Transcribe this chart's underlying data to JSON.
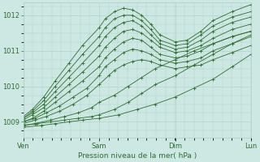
{
  "bg_color": "#cde8e3",
  "grid_color": "#b0cccc",
  "line_color": "#2d6e2d",
  "xlabel": "Pression niveau de la mer( hPa )",
  "xtick_labels": [
    "Ven",
    "Sam",
    "Dim",
    "Lun"
  ],
  "xtick_positions": [
    0.0,
    0.333,
    0.667,
    1.0
  ],
  "ylim": [
    1008.55,
    1012.35
  ],
  "yticks": [
    1009,
    1010,
    1011,
    1012
  ],
  "series": [
    {
      "pts": [
        [
          0.0,
          1008.85
        ],
        [
          0.08,
          1008.9
        ],
        [
          0.14,
          1008.95
        ],
        [
          0.2,
          1009.0
        ],
        [
          0.26,
          1009.05
        ],
        [
          0.333,
          1009.1
        ],
        [
          0.42,
          1009.2
        ],
        [
          0.5,
          1009.35
        ],
        [
          0.58,
          1009.5
        ],
        [
          0.667,
          1009.7
        ],
        [
          0.75,
          1009.95
        ],
        [
          0.833,
          1010.2
        ],
        [
          0.917,
          1010.55
        ],
        [
          1.0,
          1010.9
        ]
      ]
    },
    {
      "pts": [
        [
          0.0,
          1008.9
        ],
        [
          0.06,
          1008.95
        ],
        [
          0.12,
          1009.0
        ],
        [
          0.18,
          1009.05
        ],
        [
          0.24,
          1009.1
        ],
        [
          0.3,
          1009.15
        ],
        [
          0.333,
          1009.2
        ],
        [
          0.4,
          1009.35
        ],
        [
          0.46,
          1009.55
        ],
        [
          0.52,
          1009.8
        ],
        [
          0.58,
          1010.05
        ],
        [
          0.667,
          1010.3
        ],
        [
          0.75,
          1010.6
        ],
        [
          0.833,
          1010.9
        ],
        [
          0.917,
          1011.2
        ],
        [
          1.0,
          1011.45
        ]
      ]
    },
    {
      "pts": [
        [
          0.0,
          1008.9
        ],
        [
          0.05,
          1008.95
        ],
        [
          0.12,
          1009.05
        ],
        [
          0.18,
          1009.15
        ],
        [
          0.24,
          1009.25
        ],
        [
          0.3,
          1009.4
        ],
        [
          0.333,
          1009.55
        ],
        [
          0.4,
          1009.75
        ],
        [
          0.46,
          1010.0
        ],
        [
          0.52,
          1010.25
        ],
        [
          0.58,
          1010.5
        ],
        [
          0.667,
          1010.75
        ],
        [
          0.75,
          1011.0
        ],
        [
          0.833,
          1011.2
        ],
        [
          0.917,
          1011.4
        ],
        [
          1.0,
          1011.55
        ]
      ]
    },
    {
      "pts": [
        [
          0.0,
          1008.95
        ],
        [
          0.05,
          1009.05
        ],
        [
          0.1,
          1009.15
        ],
        [
          0.16,
          1009.3
        ],
        [
          0.22,
          1009.5
        ],
        [
          0.28,
          1009.75
        ],
        [
          0.333,
          1010.05
        ],
        [
          0.375,
          1010.3
        ],
        [
          0.4,
          1010.45
        ],
        [
          0.44,
          1010.6
        ],
        [
          0.48,
          1010.7
        ],
        [
          0.52,
          1010.75
        ],
        [
          0.56,
          1010.7
        ],
        [
          0.6,
          1010.6
        ],
        [
          0.667,
          1010.5
        ],
        [
          0.72,
          1010.55
        ],
        [
          0.78,
          1010.6
        ],
        [
          0.833,
          1010.75
        ],
        [
          0.917,
          1010.95
        ],
        [
          1.0,
          1011.15
        ]
      ]
    },
    {
      "pts": [
        [
          0.0,
          1009.0
        ],
        [
          0.05,
          1009.1
        ],
        [
          0.1,
          1009.25
        ],
        [
          0.16,
          1009.45
        ],
        [
          0.22,
          1009.7
        ],
        [
          0.28,
          1009.95
        ],
        [
          0.333,
          1010.3
        ],
        [
          0.36,
          1010.55
        ],
        [
          0.4,
          1010.75
        ],
        [
          0.44,
          1010.95
        ],
        [
          0.48,
          1011.05
        ],
        [
          0.52,
          1011.0
        ],
        [
          0.56,
          1010.9
        ],
        [
          0.6,
          1010.75
        ],
        [
          0.667,
          1010.65
        ],
        [
          0.72,
          1010.7
        ],
        [
          0.78,
          1010.8
        ],
        [
          0.833,
          1011.0
        ],
        [
          0.917,
          1011.2
        ],
        [
          1.0,
          1011.4
        ]
      ]
    },
    {
      "pts": [
        [
          0.0,
          1009.0
        ],
        [
          0.04,
          1009.1
        ],
        [
          0.09,
          1009.3
        ],
        [
          0.14,
          1009.55
        ],
        [
          0.2,
          1009.85
        ],
        [
          0.26,
          1010.15
        ],
        [
          0.333,
          1010.55
        ],
        [
          0.36,
          1010.8
        ],
        [
          0.4,
          1011.05
        ],
        [
          0.44,
          1011.25
        ],
        [
          0.48,
          1011.35
        ],
        [
          0.52,
          1011.3
        ],
        [
          0.56,
          1011.1
        ],
        [
          0.6,
          1010.9
        ],
        [
          0.667,
          1010.8
        ],
        [
          0.72,
          1010.85
        ],
        [
          0.78,
          1011.0
        ],
        [
          0.833,
          1011.2
        ],
        [
          0.917,
          1011.4
        ],
        [
          1.0,
          1011.55
        ]
      ]
    },
    {
      "pts": [
        [
          0.0,
          1009.05
        ],
        [
          0.04,
          1009.2
        ],
        [
          0.09,
          1009.4
        ],
        [
          0.14,
          1009.7
        ],
        [
          0.2,
          1010.05
        ],
        [
          0.26,
          1010.4
        ],
        [
          0.333,
          1010.85
        ],
        [
          0.36,
          1011.1
        ],
        [
          0.4,
          1011.35
        ],
        [
          0.44,
          1011.55
        ],
        [
          0.48,
          1011.6
        ],
        [
          0.52,
          1011.5
        ],
        [
          0.56,
          1011.3
        ],
        [
          0.6,
          1011.1
        ],
        [
          0.667,
          1010.95
        ],
        [
          0.72,
          1011.0
        ],
        [
          0.78,
          1011.15
        ],
        [
          0.833,
          1011.35
        ],
        [
          0.917,
          1011.6
        ],
        [
          1.0,
          1011.75
        ]
      ]
    },
    {
      "pts": [
        [
          0.0,
          1009.1
        ],
        [
          0.04,
          1009.25
        ],
        [
          0.09,
          1009.5
        ],
        [
          0.14,
          1009.85
        ],
        [
          0.2,
          1010.25
        ],
        [
          0.26,
          1010.65
        ],
        [
          0.333,
          1011.15
        ],
        [
          0.36,
          1011.4
        ],
        [
          0.4,
          1011.65
        ],
        [
          0.44,
          1011.8
        ],
        [
          0.48,
          1011.85
        ],
        [
          0.52,
          1011.7
        ],
        [
          0.56,
          1011.45
        ],
        [
          0.6,
          1011.2
        ],
        [
          0.667,
          1011.05
        ],
        [
          0.72,
          1011.1
        ],
        [
          0.78,
          1011.3
        ],
        [
          0.833,
          1011.55
        ],
        [
          0.917,
          1011.8
        ],
        [
          1.0,
          1011.95
        ]
      ]
    },
    {
      "pts": [
        [
          0.0,
          1009.1
        ],
        [
          0.04,
          1009.3
        ],
        [
          0.09,
          1009.6
        ],
        [
          0.14,
          1010.0
        ],
        [
          0.2,
          1010.45
        ],
        [
          0.26,
          1010.9
        ],
        [
          0.333,
          1011.4
        ],
        [
          0.36,
          1011.65
        ],
        [
          0.4,
          1011.9
        ],
        [
          0.44,
          1012.0
        ],
        [
          0.48,
          1012.0
        ],
        [
          0.52,
          1011.85
        ],
        [
          0.56,
          1011.6
        ],
        [
          0.6,
          1011.3
        ],
        [
          0.667,
          1011.15
        ],
        [
          0.72,
          1011.2
        ],
        [
          0.78,
          1011.45
        ],
        [
          0.833,
          1011.7
        ],
        [
          0.917,
          1011.95
        ],
        [
          1.0,
          1012.1
        ]
      ]
    },
    {
      "pts": [
        [
          0.0,
          1009.15
        ],
        [
          0.04,
          1009.35
        ],
        [
          0.09,
          1009.7
        ],
        [
          0.14,
          1010.15
        ],
        [
          0.2,
          1010.65
        ],
        [
          0.26,
          1011.15
        ],
        [
          0.333,
          1011.65
        ],
        [
          0.36,
          1011.9
        ],
        [
          0.4,
          1012.1
        ],
        [
          0.44,
          1012.2
        ],
        [
          0.48,
          1012.15
        ],
        [
          0.52,
          1012.0
        ],
        [
          0.56,
          1011.75
        ],
        [
          0.6,
          1011.45
        ],
        [
          0.667,
          1011.25
        ],
        [
          0.72,
          1011.3
        ],
        [
          0.78,
          1011.55
        ],
        [
          0.833,
          1011.85
        ],
        [
          0.917,
          1012.1
        ],
        [
          1.0,
          1012.3
        ]
      ]
    }
  ]
}
